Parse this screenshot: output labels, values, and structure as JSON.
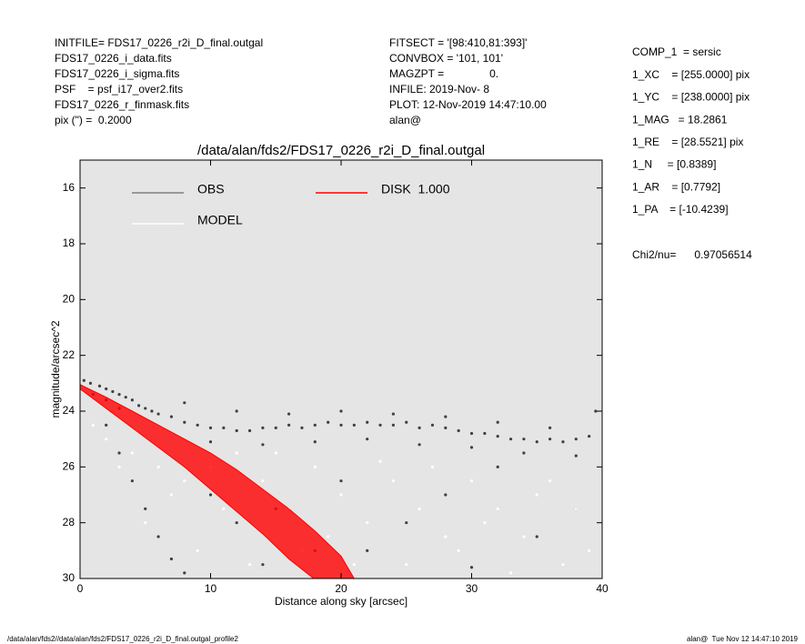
{
  "header": {
    "left": [
      "INITFILE= FDS17_0226_r2i_D_final.outgal",
      "FDS17_0226_i_data.fits",
      "FDS17_0226_i_sigma.fits",
      "PSF    = psf_i17_over2.fits",
      "FDS17_0226_r_finmask.fits",
      "pix (\") =  0.2000"
    ],
    "middle": [
      "FITSECT = '[98:410,81:393]'",
      "CONVBOX = '101, 101'",
      "MAGZPT =               0.",
      "INFILE: 2019-Nov- 8",
      "PLOT: 12-Nov-2019 14:47:10.00",
      "alan@"
    ],
    "right": [
      "COMP_1  = sersic",
      "1_XC    = [255.0000] pix",
      "1_YC    = [238.0000] pix",
      "1_MAG   = 18.2861",
      "1_RE    = [28.5521] pix",
      "1_N     = [0.8389]",
      "1_AR    = [0.7792]",
      "1_PA    = [-10.4239]"
    ],
    "chi2": "Chi2/nu=      0.97056514"
  },
  "footer": {
    "left": "/data/alan/fds2//data/alan/fds2/FDS17_0226_r2i_D_final.outgal_profile2",
    "right": "alan@  Tue Nov 12 14:47:10 2019"
  },
  "chart_data": {
    "type": "scatter",
    "title": "/data/alan/fds2/FDS17_0226_r2i_D_final.outgal",
    "x_label": "Distance along sky [arcsec]",
    "y_label": "magnitude/arcsec^2",
    "xlim": [
      0,
      40
    ],
    "xticks": [
      0,
      10,
      20,
      30,
      40
    ],
    "ylim": [
      15,
      30
    ],
    "yticks": [
      16,
      18,
      20,
      22,
      24,
      26,
      28,
      30
    ],
    "y_inverted": true,
    "background": "#e5e5e5",
    "series": [
      {
        "name": "OBS",
        "color": "#404040",
        "legend_color": "#808080",
        "type": "scatter",
        "x": [
          0.3,
          0.8,
          1.5,
          2,
          2.5,
          3,
          3.5,
          4,
          1,
          2,
          3,
          4.5,
          5,
          5.5,
          6,
          7,
          8,
          9,
          10,
          11,
          12,
          13,
          14,
          15,
          16,
          17,
          18,
          19,
          20,
          21,
          22,
          23,
          24,
          25,
          26,
          27,
          28,
          29,
          30,
          31,
          32,
          33,
          34,
          35,
          36,
          37,
          38,
          39,
          39.5,
          8,
          12,
          16,
          20,
          24,
          28,
          32,
          36,
          10,
          14,
          18,
          22,
          26,
          30,
          34,
          38,
          2,
          3,
          4,
          5,
          6,
          7,
          8,
          10,
          12,
          15,
          18,
          20,
          25,
          28,
          32,
          35,
          38,
          14,
          22,
          30
        ],
        "values": [
          22.9,
          23.0,
          23.1,
          23.2,
          23.3,
          23.4,
          23.5,
          23.6,
          23.4,
          23.6,
          23.9,
          23.8,
          23.9,
          24.0,
          24.1,
          24.2,
          24.4,
          24.5,
          24.6,
          24.6,
          24.7,
          24.7,
          24.6,
          24.6,
          24.5,
          24.6,
          24.5,
          24.4,
          24.5,
          24.5,
          24.4,
          24.5,
          24.5,
          24.4,
          24.6,
          24.5,
          24.6,
          24.7,
          24.8,
          24.8,
          24.9,
          25.0,
          25.0,
          25.1,
          25.0,
          25.1,
          25.0,
          24.9,
          24.0,
          23.7,
          24.0,
          24.1,
          24.0,
          24.1,
          24.2,
          24.4,
          24.6,
          25.1,
          25.2,
          25.1,
          25.0,
          25.2,
          25.3,
          25.5,
          25.6,
          24.5,
          25.5,
          26.5,
          27.5,
          28.5,
          29.3,
          29.8,
          27.0,
          28.0,
          27.5,
          29.0,
          26.5,
          28.0,
          27.0,
          26.0,
          28.5,
          27.5,
          29.5,
          29.0,
          29.6
        ]
      },
      {
        "name": "MODEL",
        "color": "#ffffff",
        "legend_color": "#ffffff",
        "type": "scatter",
        "x": [
          1,
          2,
          4,
          6,
          8,
          10,
          12,
          14,
          16,
          18,
          20,
          22,
          24,
          26,
          28,
          30,
          32,
          34,
          36,
          38,
          39,
          5,
          9,
          13,
          17,
          21,
          25,
          29,
          33,
          37,
          11,
          15,
          19,
          23,
          27,
          31,
          35,
          3,
          7
        ],
        "values": [
          24.5,
          25.0,
          25.5,
          26.0,
          26.5,
          26.0,
          25.5,
          26.5,
          27.5,
          26.0,
          27.0,
          28.0,
          26.5,
          27.5,
          28.5,
          26.5,
          27.5,
          28.5,
          26.5,
          27.5,
          29.0,
          28.0,
          29.0,
          29.5,
          29.0,
          29.5,
          29.5,
          29.0,
          29.8,
          29.5,
          27.5,
          25.5,
          28.5,
          25.8,
          26.0,
          28.0,
          27.0,
          26.0,
          27.0
        ]
      },
      {
        "name": "DISK  1.000",
        "color": "#ff0000",
        "legend_color": "#ff0000",
        "type": "band",
        "x": [
          0,
          2,
          4,
          6,
          8,
          10,
          12,
          14,
          16,
          18,
          20,
          21
        ],
        "values": [
          23.05,
          23.5,
          24.0,
          24.5,
          25.0,
          25.5,
          26.1,
          26.8,
          27.5,
          28.3,
          29.2,
          30.0
        ],
        "x2": [
          0,
          2,
          4,
          6,
          8,
          10,
          12,
          14,
          16,
          17.9
        ],
        "values2": [
          23.2,
          23.9,
          24.6,
          25.3,
          26.0,
          26.8,
          27.6,
          28.4,
          29.3,
          30.0
        ]
      }
    ]
  }
}
